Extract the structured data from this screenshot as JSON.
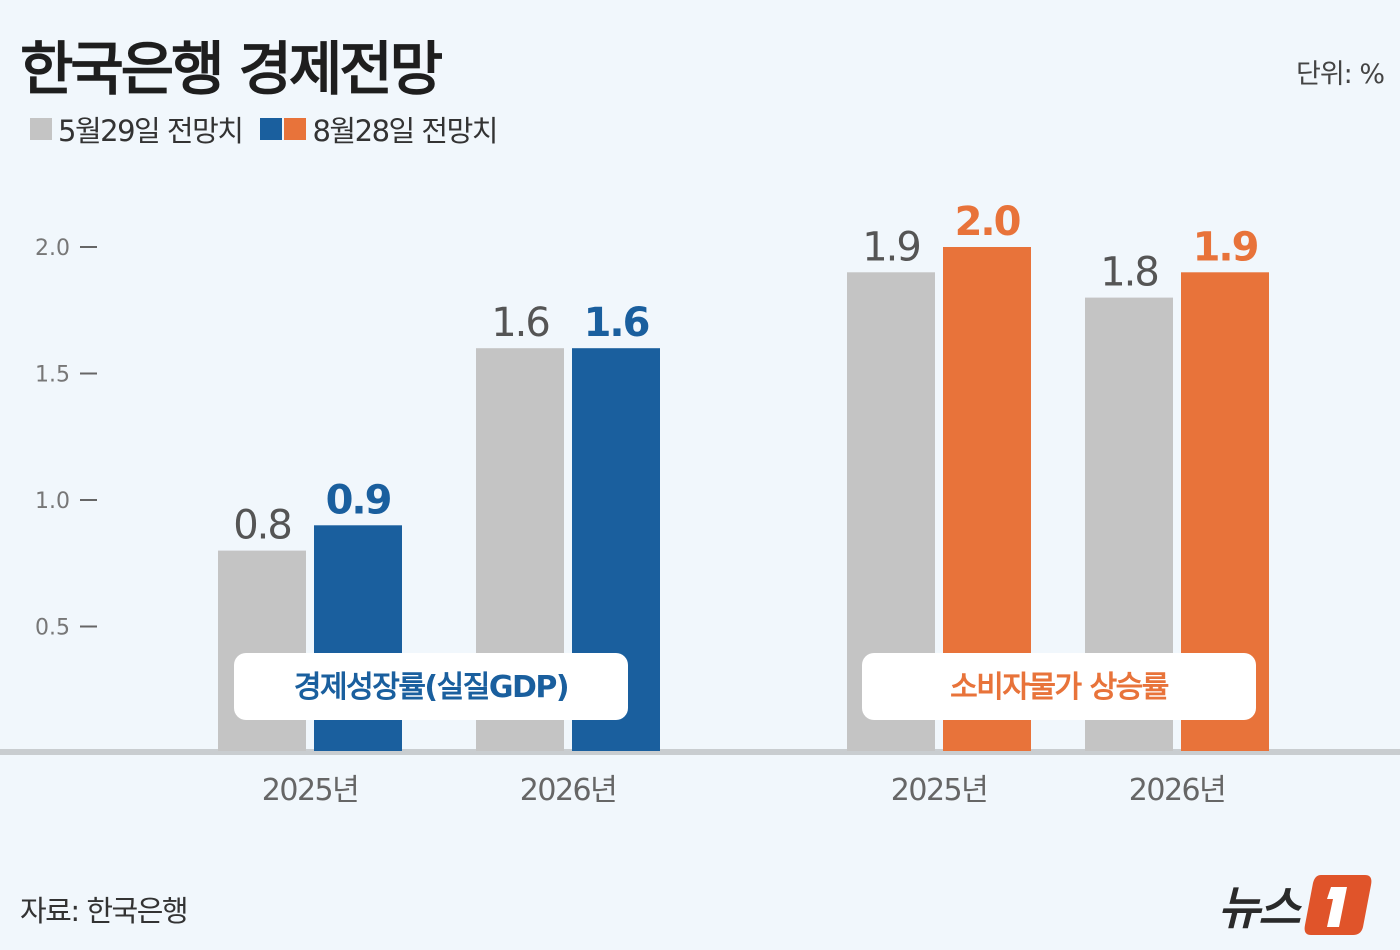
{
  "header": {
    "title": "한국은행 경제전망",
    "unit": "단위: %"
  },
  "legend": [
    {
      "label": "5월29일 전망치",
      "colors": [
        "#c4c4c4"
      ]
    },
    {
      "label": "8월28일 전망치",
      "colors": [
        "#1a5f9e",
        "#e8733a"
      ]
    }
  ],
  "footer": {
    "source": "자료: 한국은행",
    "logo": "뉴스1"
  },
  "chart_data": {
    "type": "bar",
    "ylim": [
      0,
      2.0
    ],
    "yticks": [
      "0.5",
      "1.0",
      "1.5",
      "2.0"
    ],
    "grid": false,
    "legend_placement": "top-left",
    "groups": [
      {
        "label": "경제성장률(실질GDP)",
        "categories": [
          "2025년",
          "2026년"
        ],
        "series": [
          {
            "name": "5월29일 전망치",
            "values": [
              0.8,
              1.6
            ],
            "color": "#c4c4c4",
            "label_color": "#555555"
          },
          {
            "name": "8월28일 전망치",
            "values": [
              0.9,
              1.6
            ],
            "color": "#1a5f9e",
            "label_color": "#1a5f9e"
          }
        ],
        "label_color": "#1a5f9e"
      },
      {
        "label": "소비자물가 상승률",
        "categories": [
          "2025년",
          "2026년"
        ],
        "series": [
          {
            "name": "5월29일 전망치",
            "values": [
              1.9,
              1.8
            ],
            "color": "#c4c4c4",
            "label_color": "#555555"
          },
          {
            "name": "8월28일 전망치",
            "values": [
              2.0,
              1.9
            ],
            "color": "#e8733a",
            "label_color": "#e8733a"
          }
        ],
        "label_color": "#e8733a"
      }
    ]
  }
}
